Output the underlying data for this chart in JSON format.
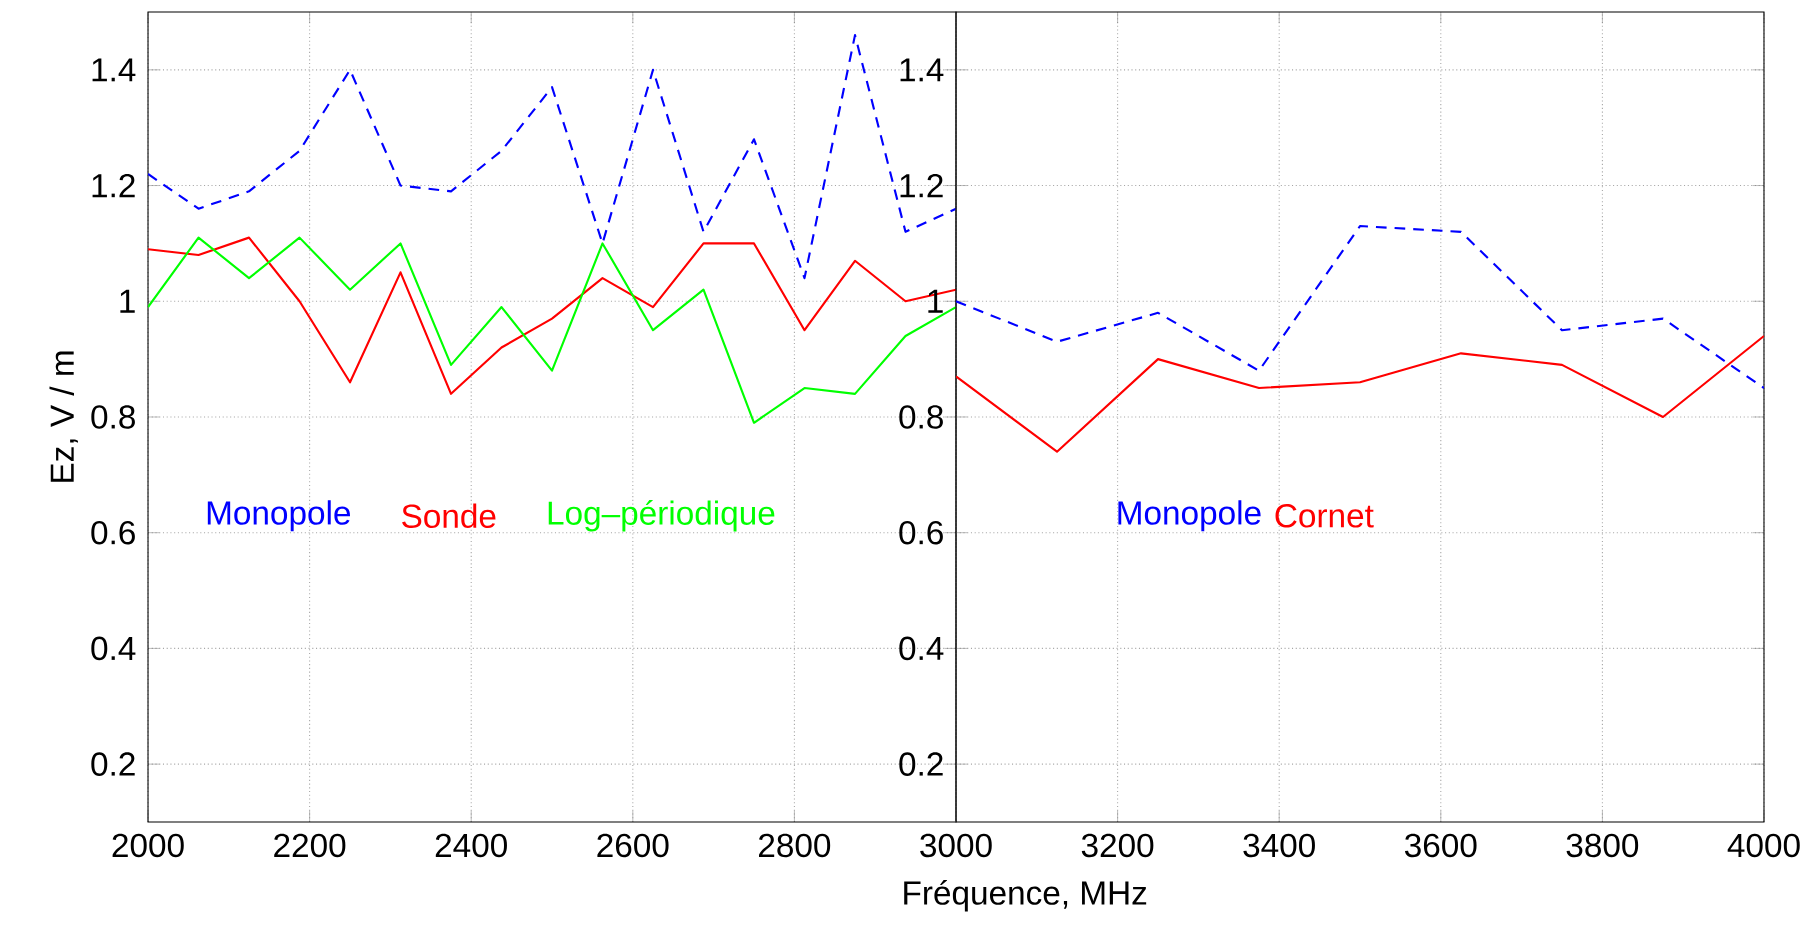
{
  "chart_data": [
    {
      "type": "line",
      "ylabel": "Ez, V / m",
      "xlabel": "Fréquence, MHz",
      "xlim": [
        2000,
        3000
      ],
      "ylim": [
        0.1,
        1.5
      ],
      "xticks": [
        2000,
        2200,
        2400,
        2600,
        2800
      ],
      "yticks": [
        0.2,
        0.4,
        0.6,
        0.8,
        1,
        1.2,
        1.4
      ],
      "grid": true,
      "x": [
        2000,
        2062.5,
        2125,
        2187.5,
        2250,
        2312.5,
        2375,
        2437.5,
        2500,
        2562.5,
        2625,
        2687.5,
        2750,
        2812.5,
        2875,
        2937.5,
        3000
      ],
      "series": [
        {
          "name": "Monopole",
          "color": "#0000ff",
          "line_style": "dashed",
          "values": [
            1.22,
            1.16,
            1.19,
            1.26,
            1.4,
            1.2,
            1.19,
            1.26,
            1.37,
            1.1,
            1.4,
            1.12,
            1.28,
            1.04,
            1.46,
            1.12,
            1.16
          ]
        },
        {
          "name": "Sonde",
          "color": "#ff0000",
          "line_style": "solid",
          "values": [
            1.09,
            1.08,
            1.11,
            1.0,
            0.86,
            1.05,
            0.84,
            0.92,
            0.97,
            1.04,
            0.99,
            1.1,
            1.1,
            0.95,
            1.07,
            1.0,
            1.02
          ]
        },
        {
          "name": "Log–périodique",
          "color": "#00ff00",
          "line_style": "solid",
          "values": [
            0.99,
            1.11,
            1.04,
            1.11,
            1.02,
            1.1,
            0.89,
            0.99,
            0.88,
            1.1,
            0.95,
            1.02,
            0.79,
            0.85,
            0.84,
            0.94,
            0.99
          ]
        }
      ]
    },
    {
      "type": "line",
      "xlim": [
        3000,
        4000
      ],
      "ylim": [
        0.1,
        1.5
      ],
      "xticks": [
        3000,
        3200,
        3400,
        3600,
        3800,
        4000
      ],
      "yticks": [
        0.2,
        0.4,
        0.6,
        0.8,
        1,
        1.2,
        1.4
      ],
      "grid": true,
      "x": [
        3000,
        3125,
        3250,
        3375,
        3500,
        3625,
        3750,
        3875,
        4000
      ],
      "series": [
        {
          "name": "Monopole",
          "color": "#0000ff",
          "line_style": "dashed",
          "values": [
            1.0,
            0.93,
            0.98,
            0.88,
            1.13,
            1.12,
            0.95,
            0.97,
            0.85
          ]
        },
        {
          "name": "Cornet",
          "color": "#ff0000",
          "line_style": "solid",
          "values": [
            0.87,
            0.74,
            0.9,
            0.85,
            0.86,
            0.91,
            0.89,
            0.8,
            0.94
          ]
        }
      ]
    }
  ]
}
